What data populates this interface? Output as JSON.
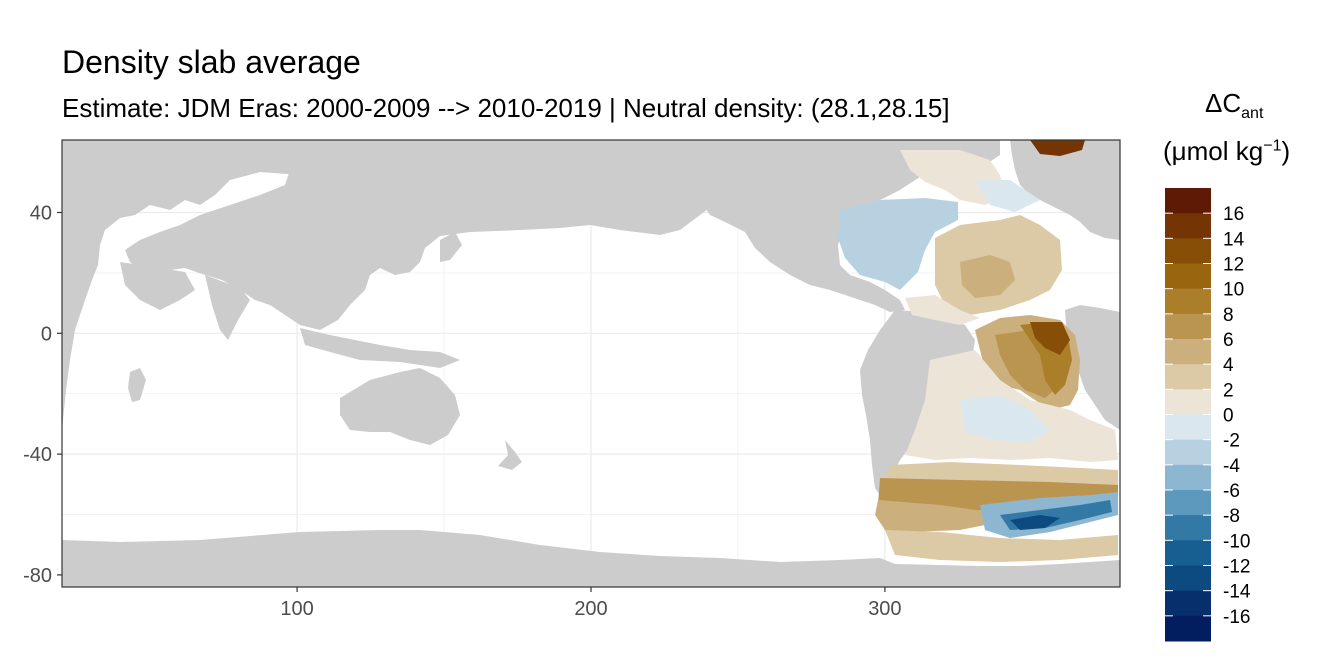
{
  "title": "Density slab average",
  "subtitle": "Estimate: JDM Eras: 2000-2009 --> 2010-2019 | Neutral density: (28.1,28.15]",
  "map": {
    "x_ticks": [
      "100",
      "200",
      "300"
    ],
    "x_tick_values": [
      100,
      200,
      300
    ],
    "y_ticks": [
      "40",
      "0",
      "-40",
      "-80"
    ],
    "y_tick_values": [
      40,
      0,
      -40,
      -80
    ],
    "xlim": [
      20,
      380
    ],
    "ylim": [
      -84,
      64
    ],
    "land_color": "#cccccc",
    "ocean_color": "#ffffff",
    "grid_color": "#ebebeb"
  },
  "legend": {
    "title_main": "ΔC",
    "title_sub": "ant",
    "unit_open": "(μmol kg",
    "unit_sup": "−1",
    "unit_close": ")",
    "labels": [
      "16",
      "14",
      "12",
      "10",
      "8",
      "6",
      "4",
      "2",
      "0",
      "-2",
      "-4",
      "-6",
      "-8",
      "-10",
      "-12",
      "-14",
      "-16"
    ],
    "colors": [
      "#5e1a04",
      "#743403",
      "#874e07",
      "#9a650f",
      "#ab7e2a",
      "#ba9550",
      "#cbb07d",
      "#dcc9a6",
      "#ece4d7",
      "#dbe7ef",
      "#b8d1e1",
      "#8db6d1",
      "#5d98bd",
      "#3379a5",
      "#175e91",
      "#0c4a80",
      "#062f6c",
      "#021e5e"
    ]
  }
}
